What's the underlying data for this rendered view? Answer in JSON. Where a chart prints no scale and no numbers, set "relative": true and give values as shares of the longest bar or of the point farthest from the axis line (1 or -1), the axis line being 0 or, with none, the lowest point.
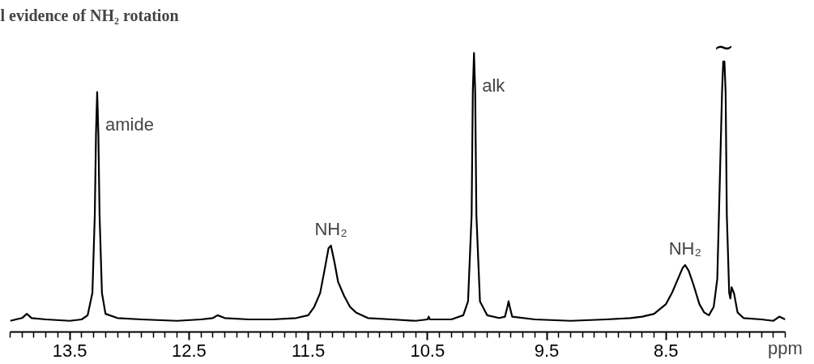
{
  "chart_data": {
    "type": "line",
    "title": "l evidence of NH₂ rotation",
    "xlabel": "ppm",
    "relative": true,
    "xlim": [
      14.0,
      7.5
    ],
    "xticks": [
      13.5,
      12.5,
      11.5,
      10.5,
      9.5,
      8.5
    ],
    "x": [
      14.0,
      13.95,
      13.9,
      13.86,
      13.82,
      13.7,
      13.5,
      13.4,
      13.35,
      13.31,
      13.29,
      13.28,
      13.27,
      13.26,
      13.25,
      13.23,
      13.2,
      13.1,
      12.9,
      12.6,
      12.4,
      12.3,
      12.26,
      12.2,
      12.0,
      11.8,
      11.6,
      11.5,
      11.45,
      11.4,
      11.36,
      11.33,
      11.31,
      11.28,
      11.25,
      11.2,
      11.15,
      11.1,
      11.0,
      10.8,
      10.6,
      10.5,
      10.49,
      10.48,
      10.3,
      10.2,
      10.16,
      10.13,
      10.12,
      10.11,
      10.1,
      10.09,
      10.06,
      10.0,
      9.9,
      9.85,
      9.83,
      9.82,
      9.81,
      9.79,
      9.6,
      9.3,
      9.0,
      8.8,
      8.7,
      8.6,
      8.5,
      8.45,
      8.4,
      8.36,
      8.34,
      8.31,
      8.27,
      8.22,
      8.18,
      8.14,
      8.1,
      8.07,
      8.05,
      8.03,
      8.02,
      8.01,
      8.0,
      7.99,
      7.97,
      7.96,
      7.95,
      7.93,
      7.9,
      7.85,
      7.7,
      7.6,
      7.55,
      7.5
    ],
    "series": [
      {
        "color": "#000000",
        "values": [
          0.04,
          0.045,
          0.05,
          0.065,
          0.05,
          0.045,
          0.04,
          0.045,
          0.06,
          0.14,
          0.42,
          0.71,
          0.86,
          0.71,
          0.42,
          0.14,
          0.065,
          0.05,
          0.045,
          0.04,
          0.045,
          0.05,
          0.06,
          0.05,
          0.045,
          0.045,
          0.05,
          0.06,
          0.09,
          0.14,
          0.23,
          0.3,
          0.31,
          0.25,
          0.18,
          0.13,
          0.09,
          0.07,
          0.05,
          0.045,
          0.04,
          0.045,
          0.055,
          0.045,
          0.045,
          0.06,
          0.11,
          0.42,
          0.86,
          1.0,
          0.86,
          0.42,
          0.11,
          0.06,
          0.05,
          0.055,
          0.09,
          0.11,
          0.09,
          0.055,
          0.045,
          0.04,
          0.045,
          0.05,
          0.055,
          0.065,
          0.1,
          0.14,
          0.19,
          0.23,
          0.24,
          0.22,
          0.17,
          0.1,
          0.07,
          0.06,
          0.09,
          0.19,
          0.52,
          0.86,
          0.97,
          0.97,
          0.86,
          0.42,
          0.14,
          0.12,
          0.16,
          0.14,
          0.07,
          0.05,
          0.045,
          0.04,
          0.055,
          0.045
        ]
      }
    ],
    "annotations": [
      {
        "text": "amide",
        "x": 13.27,
        "y": 0.86
      },
      {
        "text": "NH₂",
        "x": 11.31,
        "y": 0.31
      },
      {
        "text": "alk",
        "x": 10.11,
        "y": 1.0
      },
      {
        "text": "NH₂",
        "x": 8.34,
        "y": 0.24
      },
      {
        "text": "~",
        "x": 8.015,
        "y": 0.97
      }
    ],
    "grid": false,
    "legend": false,
    "marker": "none",
    "line_style": "solid"
  }
}
